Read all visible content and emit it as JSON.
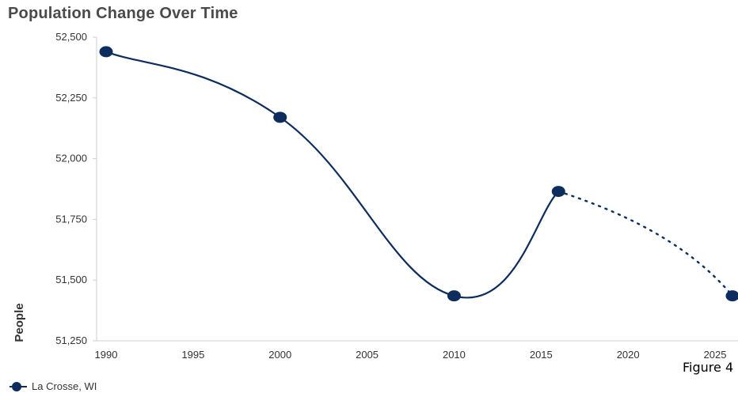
{
  "chart_data": {
    "type": "line",
    "title": "Population Change Over Time",
    "ylabel": "People",
    "xlabel": "",
    "x_ticks": [
      "1990",
      "1995",
      "2000",
      "2005",
      "2010",
      "2015",
      "2020",
      "2025"
    ],
    "y_ticks": [
      "52,500",
      "52,250",
      "52,000",
      "51,750",
      "51,500",
      "51,250"
    ],
    "xlim": [
      1990,
      2027
    ],
    "ylim": [
      51250,
      52500
    ],
    "series": [
      {
        "name": "La Crosse, WI",
        "color": "#0d2d5e",
        "actual": [
          {
            "x": 1990,
            "y": 52440
          },
          {
            "x": 2000,
            "y": 52170
          },
          {
            "x": 2010,
            "y": 51435
          },
          {
            "x": 2016,
            "y": 51865
          }
        ],
        "projected": [
          {
            "x": 2016,
            "y": 51865
          },
          {
            "x": 2026,
            "y": 51435
          }
        ]
      }
    ],
    "legend_position": "bottom-left",
    "grid": false
  },
  "figure_label": "Figure 4"
}
